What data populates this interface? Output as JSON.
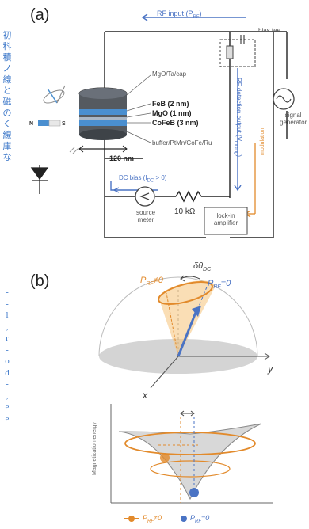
{
  "panel_a": {
    "label": "(a)",
    "rf_input": "RF input (P",
    "rf_input_sub": "RF",
    "rf_input_end": ")",
    "bias_tee": "bias tee",
    "rf_detection": "RF detection output (V",
    "rf_detection_sub": "mixing",
    "rf_detection_end": ")",
    "signal_generator": [
      "signal",
      "generator"
    ],
    "modulation": "modulation",
    "layers": {
      "cap": "MgO/Ta/cap",
      "feb": "FeB (2 nm)",
      "mgo": "MgO (1 nm)",
      "cofeb": "CoFeB (3 nm)",
      "buffer": "buffer/PtMn/CoFe/Ru"
    },
    "width_label": "120 nm",
    "dc_bias": "DC bias (I",
    "dc_bias_sub": "DC",
    "dc_bias_end": " > 0)",
    "source_meter": [
      "source",
      "meter"
    ],
    "resistor": "10 kΩ",
    "lockin": [
      "lock-in",
      "amplifier"
    ],
    "magnet_n": "N",
    "magnet_s": "S"
  },
  "panel_b": {
    "label": "(b)",
    "delta_theta": "δθ",
    "delta_theta_sub": "DC",
    "p_rf_nonzero": "P",
    "p_rf_nonzero_sub": "RF",
    "p_rf_nonzero_end": "≠0",
    "p_rf_zero": "P",
    "p_rf_zero_sub": "RF",
    "p_rf_zero_end": "=0",
    "axis_y": "y",
    "axis_x": "x",
    "axis_energy": "Magnetization energy",
    "legend_nonzero": "P",
    "legend_nonzero_sub": "RF",
    "legend_nonzero_end": "≠0",
    "legend_zero": "P",
    "legend_zero_sub": "RF",
    "legend_zero_end": "=0"
  },
  "side_text_top": [
    "初",
    "科",
    "積",
    "ノ",
    "線",
    "と",
    "磁",
    "の",
    "く",
    "線",
    "庫",
    "な"
  ],
  "side_text_bottom": [
    "-",
    "-",
    "l",
    ",",
    "r",
    "-",
    "o",
    "d",
    "-",
    ",",
    "e",
    "e"
  ],
  "colors": {
    "blue": "#4a73c4",
    "orange": "#e28a2b",
    "stack_blue": "#4a8fd0",
    "stack_gray": "#555a60"
  }
}
